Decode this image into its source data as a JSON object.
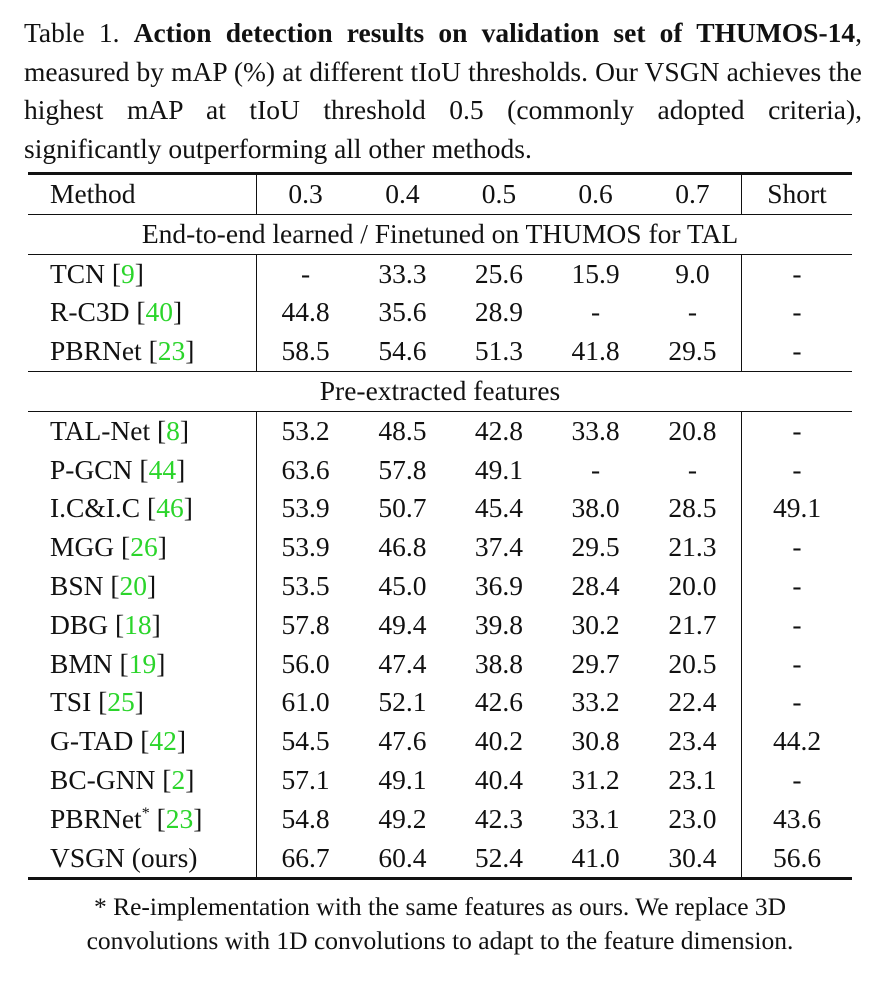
{
  "caption": {
    "label": "Table 1. ",
    "bold_title": "Action detection results on validation set of THUMOS-14",
    "body": ", measured by mAP (%) at different tIoU thresholds. Our VSGN achieves the highest mAP at tIoU threshold 0.5 (commonly adopted criteria), significantly outperforming all other methods."
  },
  "table": {
    "headers": [
      "Method",
      "0.3",
      "0.4",
      "0.5",
      "0.6",
      "0.7",
      "Short"
    ],
    "sections": [
      {
        "title": "End-to-end learned / Finetuned on THUMOS for TAL",
        "rows": [
          {
            "method": "TCN",
            "mark": "",
            "ref": "9",
            "values": [
              "-",
              "33.3",
              "25.6",
              "15.9",
              "9.0",
              "-"
            ]
          },
          {
            "method": "R-C3D",
            "mark": "",
            "ref": "40",
            "values": [
              "44.8",
              "35.6",
              "28.9",
              "-",
              "-",
              "-"
            ]
          },
          {
            "method": "PBRNet",
            "mark": "",
            "ref": "23",
            "values": [
              "58.5",
              "54.6",
              "51.3",
              "41.8",
              "29.5",
              "-"
            ]
          }
        ]
      },
      {
        "title": "Pre-extracted features",
        "rows": [
          {
            "method": "TAL-Net",
            "mark": "",
            "ref": "8",
            "values": [
              "53.2",
              "48.5",
              "42.8",
              "33.8",
              "20.8",
              "-"
            ]
          },
          {
            "method": "P-GCN",
            "mark": "",
            "ref": "44",
            "values": [
              "63.6",
              "57.8",
              "49.1",
              "-",
              "-",
              "-"
            ]
          },
          {
            "method": "I.C&I.C",
            "mark": "",
            "ref": "46",
            "values": [
              "53.9",
              "50.7",
              "45.4",
              "38.0",
              "28.5",
              "49.1"
            ]
          },
          {
            "method": "MGG",
            "mark": "",
            "ref": "26",
            "values": [
              "53.9",
              "46.8",
              "37.4",
              "29.5",
              "21.3",
              "-"
            ]
          },
          {
            "method": "BSN",
            "mark": "",
            "ref": "20",
            "values": [
              "53.5",
              "45.0",
              "36.9",
              "28.4",
              "20.0",
              "-"
            ]
          },
          {
            "method": "DBG",
            "mark": "",
            "ref": "18",
            "values": [
              "57.8",
              "49.4",
              "39.8",
              "30.2",
              "21.7",
              "-"
            ]
          },
          {
            "method": "BMN",
            "mark": "",
            "ref": "19",
            "values": [
              "56.0",
              "47.4",
              "38.8",
              "29.7",
              "20.5",
              "-"
            ]
          },
          {
            "method": "TSI",
            "mark": "",
            "ref": "25",
            "values": [
              "61.0",
              "52.1",
              "42.6",
              "33.2",
              "22.4",
              "-"
            ]
          },
          {
            "method": "G-TAD",
            "mark": "",
            "ref": "42",
            "values": [
              "54.5",
              "47.6",
              "40.2",
              "30.8",
              "23.4",
              "44.2"
            ]
          },
          {
            "method": "BC-GNN",
            "mark": "",
            "ref": "2",
            "values": [
              "57.1",
              "49.1",
              "40.4",
              "31.2",
              "23.1",
              "-"
            ]
          },
          {
            "method": "PBRNet",
            "mark": "*",
            "ref": "23",
            "values": [
              "54.8",
              "49.2",
              "42.3",
              "33.1",
              "23.0",
              "43.6"
            ]
          }
        ]
      }
    ],
    "final_row": {
      "method": "VSGN (ours)",
      "values": [
        "66.7",
        "60.4",
        "52.4",
        "41.0",
        "30.4",
        "56.6"
      ]
    }
  },
  "footnote": "* Re-implementation with the same features as ours. We replace 3D convolutions with 1D convolutions to adapt to the feature dimension.",
  "colors": {
    "citation": "#2bd52b",
    "text": "#111111"
  }
}
